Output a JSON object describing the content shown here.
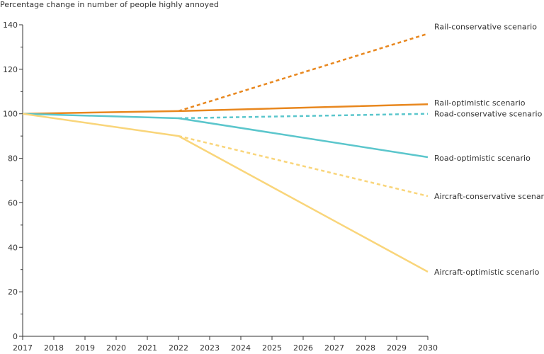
{
  "chart_data": {
    "type": "line",
    "title": "",
    "ylabel": "Percentage change in number of people highly annoyed",
    "xlabel": "",
    "x": [
      2017,
      2018,
      2019,
      2020,
      2021,
      2022,
      2023,
      2024,
      2025,
      2026,
      2027,
      2028,
      2029,
      2030
    ],
    "xlim": [
      2017,
      2030
    ],
    "ylim": [
      0,
      140
    ],
    "yticks": [
      0,
      20,
      40,
      60,
      80,
      100,
      120,
      140
    ],
    "grid": false,
    "legend": "inline labels at line ends",
    "series": [
      {
        "name": "Rail-conservative scenario",
        "style": "dashed",
        "color": "#e8871e",
        "points": [
          [
            2022,
            101.2
          ],
          [
            2030,
            136
          ]
        ]
      },
      {
        "name": "Rail-optimistic scenario",
        "style": "solid",
        "color": "#e8871e",
        "points": [
          [
            2017,
            100
          ],
          [
            2022,
            101.2
          ],
          [
            2030,
            104.3
          ]
        ]
      },
      {
        "name": "Road-conservative scenario",
        "style": "dashed",
        "color": "#5bc6cc",
        "points": [
          [
            2022,
            98
          ],
          [
            2030,
            100
          ]
        ]
      },
      {
        "name": "Road-optimistic scenario",
        "style": "solid",
        "color": "#5bc6cc",
        "points": [
          [
            2017,
            100
          ],
          [
            2022,
            98
          ],
          [
            2030,
            80.5
          ]
        ]
      },
      {
        "name": "Aircraft-conservative scenario",
        "style": "dashed",
        "color": "#f9d57a",
        "points": [
          [
            2022,
            90
          ],
          [
            2030,
            63
          ]
        ]
      },
      {
        "name": "Aircraft-optimistic scenario",
        "style": "solid",
        "color": "#f9d57a",
        "points": [
          [
            2017,
            100
          ],
          [
            2022,
            90
          ],
          [
            2030,
            29
          ]
        ]
      }
    ]
  }
}
